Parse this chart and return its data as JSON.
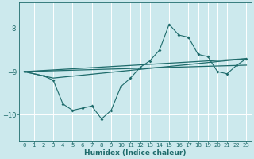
{
  "xlabel": "Humidex (Indice chaleur)",
  "bg_color": "#cce9ed",
  "line_color": "#1e6b6b",
  "grid_color": "#b0d5da",
  "xlim": [
    -0.5,
    23.5
  ],
  "ylim": [
    -10.6,
    -7.4
  ],
  "yticks": [
    -10,
    -9,
    -8
  ],
  "xticks": [
    0,
    1,
    2,
    3,
    4,
    5,
    6,
    7,
    8,
    9,
    10,
    11,
    12,
    13,
    14,
    15,
    16,
    17,
    18,
    19,
    20,
    21,
    22,
    23
  ],
  "line1_x": [
    0,
    23
  ],
  "line1_y": [
    -9.0,
    -8.7
  ],
  "line2_x": [
    0,
    23
  ],
  "line2_y": [
    -9.0,
    -8.85
  ],
  "line3_x": [
    0,
    3,
    23
  ],
  "line3_y": [
    -9.0,
    -9.15,
    -8.7
  ],
  "line4_x": [
    0,
    2,
    3,
    4,
    5,
    6,
    7,
    8,
    9,
    10,
    11,
    12,
    13,
    14,
    15,
    16,
    17,
    18,
    19,
    20,
    21,
    22,
    23
  ],
  "line4_y": [
    -9.0,
    -9.1,
    -9.2,
    -9.75,
    -9.9,
    -9.85,
    -9.8,
    -10.1,
    -9.9,
    -9.35,
    -9.15,
    -8.9,
    -8.75,
    -8.5,
    -7.9,
    -8.15,
    -8.2,
    -8.6,
    -8.65,
    -9.0,
    -9.05,
    -8.85,
    -8.7
  ]
}
